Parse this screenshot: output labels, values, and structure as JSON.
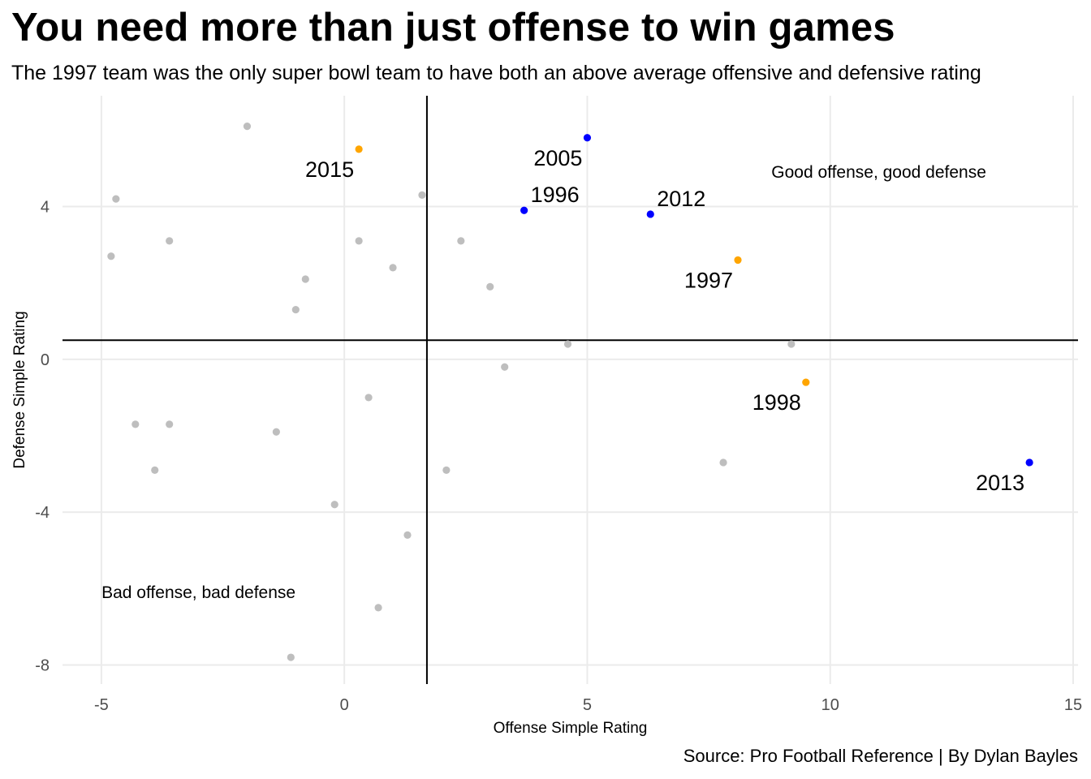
{
  "title": "You need more than just offense to win games",
  "subtitle": "The 1997 team was the only super bowl team to have both an above average offensive and defensive rating",
  "caption": "Source: Pro Football Reference | By Dylan Bayles",
  "chart_data": {
    "type": "scatter",
    "xlabel": "Offense Simple Rating",
    "ylabel": "Defense Simple Rating",
    "xlim": [
      -5.8,
      15.1
    ],
    "ylim": [
      -8.5,
      6.9
    ],
    "x_ticks": [
      -5,
      0,
      5,
      10,
      15
    ],
    "y_ticks": [
      -8,
      -4,
      0,
      4
    ],
    "grid": true,
    "reference_lines": {
      "x": 1.7,
      "y": 0.5
    },
    "colors": {
      "other": "#bebebe",
      "highlight_orange": "#ffa500",
      "highlight_blue": "#0000ff"
    },
    "points": [
      {
        "x": -2.0,
        "y": 6.1,
        "group": "other"
      },
      {
        "x": -4.7,
        "y": 4.2,
        "group": "other"
      },
      {
        "x": -3.6,
        "y": 3.1,
        "group": "other"
      },
      {
        "x": -4.8,
        "y": 2.7,
        "group": "other"
      },
      {
        "x": -0.8,
        "y": 2.1,
        "group": "other"
      },
      {
        "x": -1.0,
        "y": 1.3,
        "group": "other"
      },
      {
        "x": 0.3,
        "y": 3.1,
        "group": "other"
      },
      {
        "x": 1.0,
        "y": 2.4,
        "group": "other"
      },
      {
        "x": 1.6,
        "y": 4.3,
        "group": "other"
      },
      {
        "x": 2.4,
        "y": 3.1,
        "group": "other"
      },
      {
        "x": 3.0,
        "y": 1.9,
        "group": "other"
      },
      {
        "x": 3.3,
        "y": -0.2,
        "group": "other"
      },
      {
        "x": 4.6,
        "y": 0.4,
        "group": "other"
      },
      {
        "x": 9.2,
        "y": 0.4,
        "group": "other"
      },
      {
        "x": 7.8,
        "y": -2.7,
        "group": "other"
      },
      {
        "x": 0.5,
        "y": -1.0,
        "group": "other"
      },
      {
        "x": -4.3,
        "y": -1.7,
        "group": "other"
      },
      {
        "x": -3.6,
        "y": -1.7,
        "group": "other"
      },
      {
        "x": -1.4,
        "y": -1.9,
        "group": "other"
      },
      {
        "x": -3.9,
        "y": -2.9,
        "group": "other"
      },
      {
        "x": 2.1,
        "y": -2.9,
        "group": "other"
      },
      {
        "x": -0.2,
        "y": -3.8,
        "group": "other"
      },
      {
        "x": 1.3,
        "y": -4.6,
        "group": "other"
      },
      {
        "x": 0.7,
        "y": -6.5,
        "group": "other"
      },
      {
        "x": -1.1,
        "y": -7.8,
        "group": "other"
      },
      {
        "x": 0.3,
        "y": 5.5,
        "group": "highlight_orange",
        "label": "2015",
        "label_pos": "below-left"
      },
      {
        "x": 8.1,
        "y": 2.6,
        "group": "highlight_orange",
        "label": "1997",
        "label_pos": "below-left"
      },
      {
        "x": 9.5,
        "y": -0.6,
        "group": "highlight_orange",
        "label": "1998",
        "label_pos": "below-left"
      },
      {
        "x": 5.0,
        "y": 5.8,
        "group": "highlight_blue",
        "label": "2005",
        "label_pos": "below-left"
      },
      {
        "x": 3.7,
        "y": 3.9,
        "group": "highlight_blue",
        "label": "1996",
        "label_pos": "above-right"
      },
      {
        "x": 6.3,
        "y": 3.8,
        "group": "highlight_blue",
        "label": "2012",
        "label_pos": "above-right"
      },
      {
        "x": 14.1,
        "y": -2.7,
        "group": "highlight_blue",
        "label": "2013",
        "label_pos": "below-left"
      }
    ],
    "annotations": [
      {
        "text": "Good offense, good defense",
        "x": 11.0,
        "y": 4.9
      },
      {
        "text": "Bad offense, bad defense",
        "x": -3.0,
        "y": -6.1
      }
    ]
  }
}
